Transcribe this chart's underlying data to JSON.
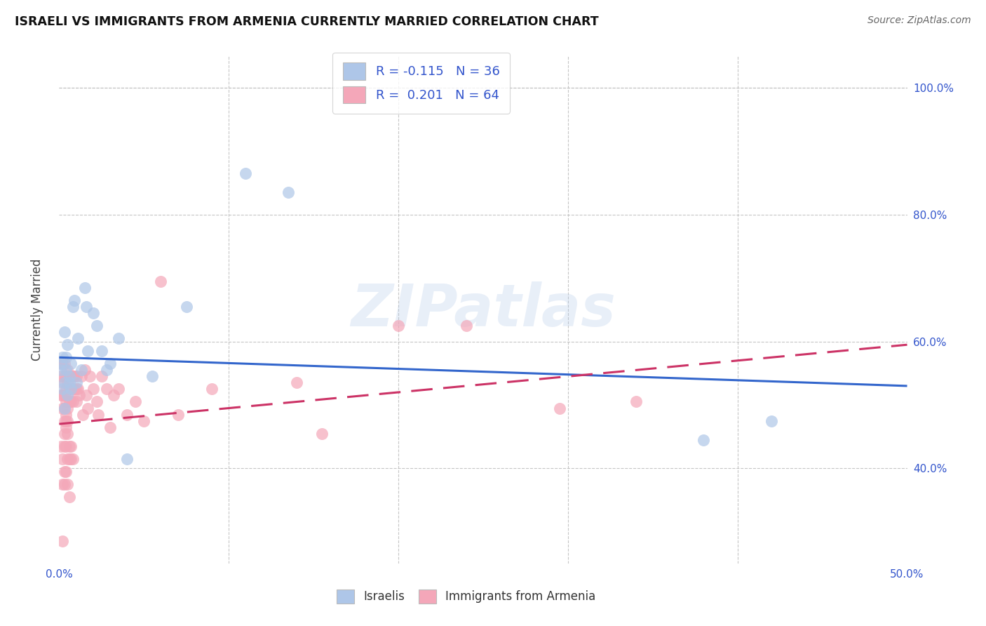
{
  "title": "ISRAELI VS IMMIGRANTS FROM ARMENIA CURRENTLY MARRIED CORRELATION CHART",
  "source": "Source: ZipAtlas.com",
  "ylabel": "Currently Married",
  "xlim": [
    0.0,
    0.5
  ],
  "ylim": [
    0.25,
    1.05
  ],
  "x_ticks": [
    0.0,
    0.1,
    0.2,
    0.3,
    0.4,
    0.5
  ],
  "x_tick_labels": [
    "0.0%",
    "",
    "",
    "",
    "",
    "50.0%"
  ],
  "y_ticks": [
    0.4,
    0.6,
    0.8,
    1.0
  ],
  "y_tick_labels": [
    "40.0%",
    "60.0%",
    "80.0%",
    "100.0%"
  ],
  "watermark": "ZIPatlas",
  "legend_label1": "R = -0.115   N = 36",
  "legend_label2": "R =  0.201   N = 64",
  "legend_color1": "#aec6e8",
  "legend_color2": "#f4a7b9",
  "line_color1": "#3366cc",
  "line_color2": "#cc3366",
  "israelis_x": [
    0.001,
    0.001,
    0.002,
    0.002,
    0.003,
    0.003,
    0.003,
    0.004,
    0.004,
    0.005,
    0.005,
    0.006,
    0.006,
    0.007,
    0.007,
    0.008,
    0.009,
    0.01,
    0.011,
    0.013,
    0.015,
    0.016,
    0.017,
    0.02,
    0.022,
    0.025,
    0.028,
    0.03,
    0.035,
    0.04,
    0.055,
    0.075,
    0.11,
    0.135,
    0.38,
    0.42
  ],
  "israelis_y": [
    0.565,
    0.555,
    0.575,
    0.525,
    0.535,
    0.495,
    0.615,
    0.575,
    0.555,
    0.515,
    0.595,
    0.535,
    0.545,
    0.565,
    0.525,
    0.655,
    0.665,
    0.535,
    0.605,
    0.555,
    0.685,
    0.655,
    0.585,
    0.645,
    0.625,
    0.585,
    0.555,
    0.565,
    0.605,
    0.415,
    0.545,
    0.655,
    0.865,
    0.835,
    0.445,
    0.475
  ],
  "armenia_x": [
    0.001,
    0.001,
    0.001,
    0.002,
    0.002,
    0.002,
    0.002,
    0.003,
    0.003,
    0.003,
    0.003,
    0.003,
    0.004,
    0.004,
    0.004,
    0.004,
    0.004,
    0.005,
    0.005,
    0.005,
    0.005,
    0.005,
    0.006,
    0.006,
    0.006,
    0.007,
    0.007,
    0.007,
    0.008,
    0.008,
    0.008,
    0.009,
    0.009,
    0.01,
    0.01,
    0.01,
    0.011,
    0.012,
    0.013,
    0.014,
    0.015,
    0.016,
    0.017,
    0.018,
    0.02,
    0.022,
    0.023,
    0.025,
    0.028,
    0.03,
    0.032,
    0.035,
    0.04,
    0.045,
    0.05,
    0.06,
    0.07,
    0.09,
    0.14,
    0.155,
    0.2,
    0.24,
    0.295,
    0.34
  ],
  "armenia_y": [
    0.565,
    0.545,
    0.515,
    0.565,
    0.535,
    0.515,
    0.495,
    0.565,
    0.545,
    0.515,
    0.495,
    0.475,
    0.545,
    0.525,
    0.505,
    0.485,
    0.465,
    0.555,
    0.535,
    0.515,
    0.495,
    0.475,
    0.545,
    0.525,
    0.505,
    0.545,
    0.525,
    0.505,
    0.545,
    0.525,
    0.505,
    0.545,
    0.525,
    0.545,
    0.525,
    0.505,
    0.525,
    0.515,
    0.545,
    0.485,
    0.555,
    0.515,
    0.495,
    0.545,
    0.525,
    0.505,
    0.485,
    0.545,
    0.525,
    0.465,
    0.515,
    0.525,
    0.485,
    0.505,
    0.475,
    0.695,
    0.485,
    0.525,
    0.535,
    0.455,
    0.625,
    0.625,
    0.495,
    0.505
  ],
  "extra_armenia_x": [
    0.001,
    0.002,
    0.003,
    0.004,
    0.005,
    0.006,
    0.007,
    0.008,
    0.003,
    0.004,
    0.003,
    0.002,
    0.005,
    0.006,
    0.007,
    0.002,
    0.004,
    0.005,
    0.006,
    0.003
  ],
  "extra_armenia_y": [
    0.435,
    0.415,
    0.435,
    0.435,
    0.415,
    0.435,
    0.415,
    0.415,
    0.455,
    0.475,
    0.395,
    0.375,
    0.455,
    0.415,
    0.435,
    0.285,
    0.395,
    0.375,
    0.355,
    0.375
  ]
}
